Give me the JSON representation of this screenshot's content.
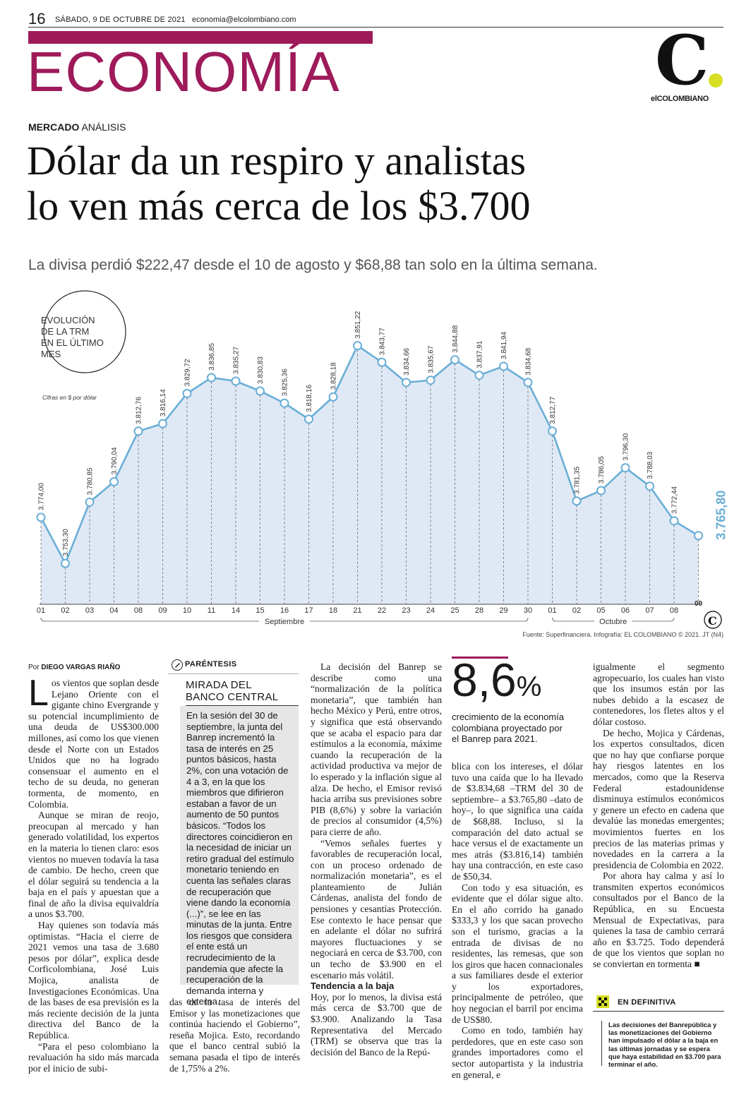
{
  "header": {
    "page_number": "16",
    "date": "SÁBADO, 9 DE OCTUBRE DE 2021",
    "email": "economia@elcolombiano.com",
    "section": "ECONOMÍA",
    "logo_letter": "C",
    "logo_name": "elCOLOMBIANO",
    "accent_color": "#9e1a5a",
    "logo_dot_color": "#d7df23"
  },
  "article": {
    "kicker_bold": "MERCADO",
    "kicker_rest": "ANÁLISIS",
    "headline_line1": "Dólar da un respiro y analistas",
    "headline_line2": "lo ven más cerca de los $3.700",
    "deck": "La divisa perdió $222,47 desde el 10 de agosto y $68,88 tan solo en la última semana.",
    "byline_prefix": "Por",
    "byline_name": "DIEGO VARGAS RIAÑO"
  },
  "chart_data": {
    "type": "area",
    "title": "EVOLUCIÓN DE LA TRM EN EL ÚLTIMO MES",
    "title_lines": [
      "EVOLUCIÓN",
      "DE LA TRM",
      "EN EL ÚLTIMO",
      "MES"
    ],
    "units_note": "Cifras en $ por dólar",
    "x": [
      "01",
      "02",
      "03",
      "04",
      "08",
      "09",
      "10",
      "11",
      "14",
      "15",
      "16",
      "17",
      "18",
      "21",
      "22",
      "23",
      "24",
      "25",
      "28",
      "29",
      "30",
      "01",
      "02",
      "05",
      "06",
      "07",
      "08",
      "09"
    ],
    "values": [
      3774.0,
      3753.3,
      3780.85,
      3790.04,
      3812.76,
      3816.14,
      3829.72,
      3836.85,
      3835.27,
      3830.83,
      3825.36,
      3818.16,
      3828.18,
      3851.22,
      3843.77,
      3834.66,
      3835.67,
      3844.88,
      3837.91,
      3841.94,
      3834.68,
      3812.77,
      3781.35,
      3786.05,
      3796.3,
      3788.03,
      3772.44,
      3765.8
    ],
    "value_labels": [
      "3.774,00",
      "3.753,30",
      "3.780,85",
      "3.790,04",
      "3.812,76",
      "3.816,14",
      "3.829,72",
      "3.836,85",
      "3.835,27",
      "3.830,83",
      "3.825,36",
      "3.818,16",
      "3.828,18",
      "3.851,22",
      "3.843,77",
      "3.834,66",
      "3.835,67",
      "3.844,88",
      "3.837,91",
      "3.841,94",
      "3.834,68",
      "3.812,77",
      "3.781,35",
      "3.786,05",
      "3.796,30",
      "3.788,03",
      "3.772,44",
      "3.765,80"
    ],
    "month_labels": [
      "Septiembre",
      "Octubre"
    ],
    "ylim": [
      3740,
      3860
    ],
    "line_color": "#6aaed6",
    "fill_color": "#dfe9f5",
    "highlight_color": "#6aaed6",
    "source": "Fuente: Superfinanciera. Infografía: EL COLOMBIANO © 2021. JT (N4)"
  },
  "col1": [
    "os vientos que soplan desde Lejano Oriente con el gigante chino Evergrande y su potencial incumplimiento de una deuda de US$300.000 millones, así como los que vienen desde el Norte con un Estados Unidos que no ha logrado consensuar el aumento en el techo de su deuda, no generan tormenta, de momento, en Colombia.",
    "Aunque se miran de reojo, preocupan al mercado y han generado volatilidad, los expertos en la materia lo tienen claro: esos vientos no mueven todavía la tasa de cambio. De hecho, creen que el dólar seguirá su tendencia a la baja en el país y apuestan que a final de año la divisa equivaldría a unos $3.700.",
    "Hay quienes son todavía más optimistas. “Hacia el cierre de 2021 vemos una tasa de 3.680 pesos por dólar”, explica desde Corficolombiana, José Luis Mojica, analista de Investigaciones Económicas. Una de las bases de esa previsión es la más reciente decisión de la junta directiva del Banco de la República.",
    "“Para el peso colombiano la revaluación ha sido más marcada por el inicio de subi-"
  ],
  "dropcap": "L",
  "parentesis": {
    "label": "PARÉNTESIS",
    "title_line1": "MIRADA DEL",
    "title_line2": "BANCO CENTRAL",
    "text": "En la sesión del 30 de septiembre, la junta del Banrep incrementó la tasa de interés en 25 puntos básicos, hasta 2%, con una votación de 4 a 3, en la que los miembros que difirieron estaban a favor de un aumento de 50 puntos básicos. “Todos los directores coincidieron en la necesidad de iniciar un retiro gradual del estímulo monetario teniendo en cuenta las señales claras de recuperación que viene dando la economía (...)”, se lee en las minutas de la junta. Entre los riesgos que considera el ente está un recrudecimiento de la pandemia que afecte la recuperación de la demanda interna y externa."
  },
  "col2_bottom": "das de la tasa de interés del Emisor y las monetizaciones que continúa haciendo el Gobierno”, reseña Mojica. Esto, recordando que el banco central subió la semana pasada el tipo de interés de 1,75% a 2%.",
  "col3": [
    "La decisión del Banrep se describe como una “normalización de la política monetaria”, que también han hecho México y Perú, entre otros, y significa que está observando que se acaba el espacio para dar estímulos a la economía, máxime cuando la recuperación de la actividad productiva va mejor de lo esperado y la inflación sigue al alza. De hecho, el Emisor revisó hacia arriba sus previsiones sobre PIB (8,6%) y sobre la variación de precios al consumidor (4,5%) para cierre de año.",
    "“Vemos señales fuertes y favorables de recuperación local, con un proceso ordenado de normalización monetaria”, es el planteamiento de Julián Cárdenas, analista del fondo de pensiones y cesantías Protección. Ese contexto le hace pensar que en adelante el dólar no sufrirá mayores fluctuaciones y se negociará en cerca de $3.700, con un techo de $3.900 en el escenario más volátil."
  ],
  "col3_sub": "Tendencia a la baja",
  "col3_after": "Hoy, por lo menos, la divisa está más cerca de $3.700 que de $3.900. Analizando la Tasa Representativa del Mercado (TRM) se observa que tras la decisión del Banco de la Repú-",
  "stat": {
    "number": "8,6",
    "percent": "%",
    "caption": "crecimiento de la economía colombiana proyectado por el Banrep para 2021."
  },
  "col4": [
    "blica con los intereses, el dólar tuvo una caída que lo ha llevado de $3.834,68 –TRM del 30 de septiembre– a $3.765,80 –dato de hoy–, lo que significa una caída de $68,88. Incluso, si la comparación del dato actual se hace versus el de exactamente un mes atrás ($3.816,14) también hay una contracción, en este caso de $50,34.",
    "Con todo y esa situación, es evidente que el dólar sigue alto. En el año corrido ha ganado $333,3 y los que sacan provecho son el turismo, gracias a la entrada de divisas de no residentes, las remesas, que son los giros que hacen connacionales a sus familiares desde el exterior y los exportadores, principalmente de petróleo, que hoy negocian el barril por encima de US$80.",
    "Como en todo, también hay perdedores, que en este caso son grandes importadores como el sector autopartista y la industria en general, e"
  ],
  "col5": [
    "igualmente el segmento agropecuario, los cuales han visto que los insumos están por las nubes debido a la escasez de contenedores, los fletes altos y el dólar costoso.",
    "De hecho, Mojica y Cárdenas, los expertos consultados, dicen que no hay que confiarse porque hay riesgos latentes en los mercados, como que la Reserva Federal estadounidense disminuya estímulos económicos y genere un efecto en cadena que devalúe las monedas emergentes; movimientos fuertes en los precios de las materias primas y novedades en la carrera a la presidencia de Colombia en 2022.",
    "Por ahora hay calma y así lo transmiten expertos económicos consultados por el Banco de la República, en su Encuesta Mensual de Expectativas, para quienes la tasa de cambio cerrará año en $3.725. Todo dependerá de que los vientos que soplan no se conviertan en tormenta ■"
  ],
  "en_definitiva": {
    "label": "EN DEFINITIVA",
    "text": "Las decisiones del Banrepública y las monetizaciones del Gobierno han impulsado el dólar a la baja en las últimas jornadas y se espera que haya estabilidad en $3.700 para terminar el año."
  }
}
